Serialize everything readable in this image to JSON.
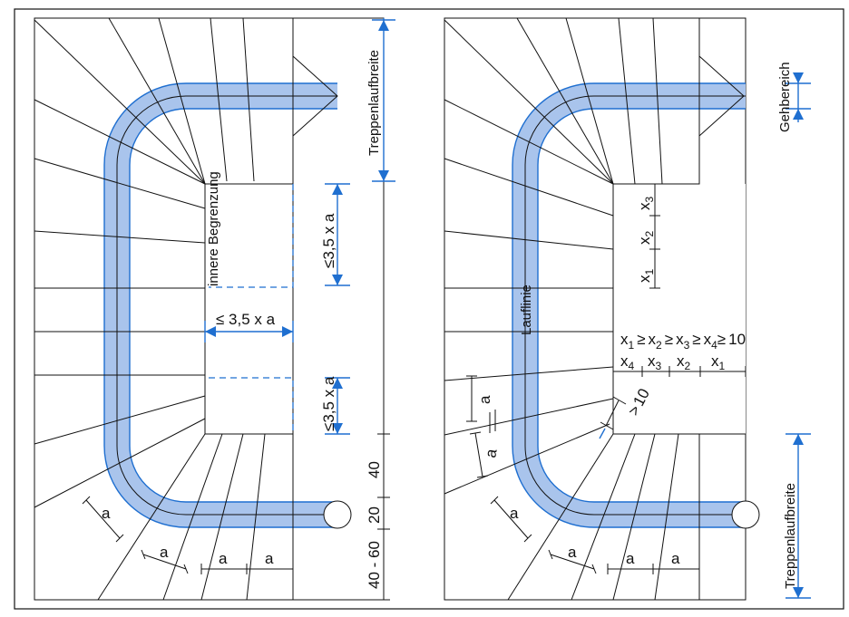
{
  "left": {
    "labels": {
      "treppenlaufbreite": "Treppenlaufbreite",
      "innere_begrenzung": "innere Begrenzung",
      "max_top": "≤3,5 x a",
      "max_width": "≤ 3,5 x a",
      "max_bottom": "≤3,5 x a",
      "dim_40": "40",
      "dim_20": "20",
      "dim_40_60": "40 - 60",
      "step_a": "a"
    }
  },
  "right": {
    "labels": {
      "gehbereich": "Gehbereich",
      "lauflinie": "Lauflinie",
      "x1": "x",
      "x2": "x",
      "x3": "x",
      "x4": "x",
      "sub1": "1",
      "sub2": "2",
      "sub3": "3",
      "sub4": "4",
      "formula_ge": "≥",
      "formula_end": "10",
      "min_10": "10",
      "step_a": "a",
      "treppenlaufbreite": "Treppenlaufbreite"
    }
  },
  "colors": {
    "walkband": "#a9c4ec",
    "dimension": "#1f6fd0",
    "line": "#111111"
  }
}
